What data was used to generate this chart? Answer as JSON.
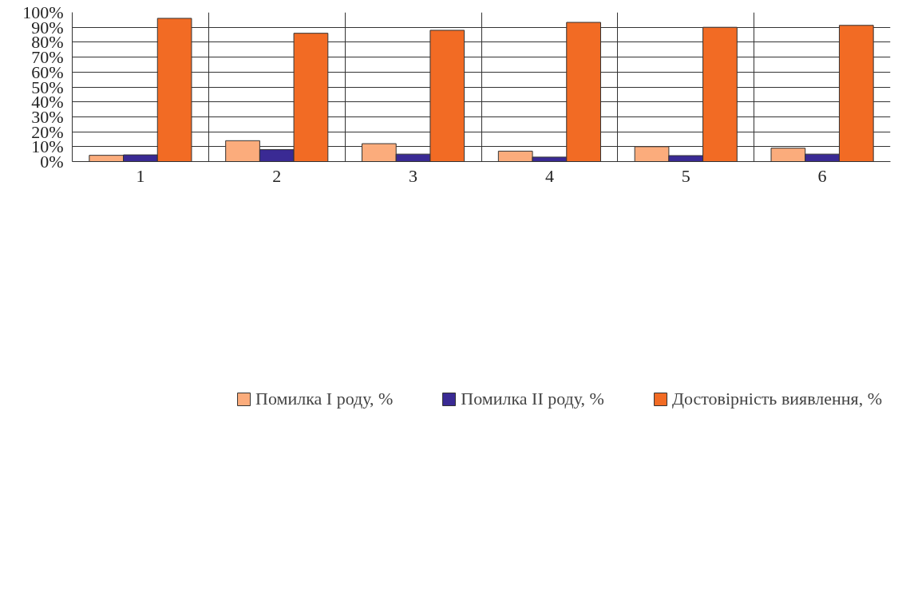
{
  "chart_data": {
    "type": "bar",
    "categories": [
      "1",
      "2",
      "3",
      "4",
      "5",
      "6"
    ],
    "series": [
      {
        "name": "Помилка I роду, %",
        "color": "#fbac7c",
        "values": [
          4.2,
          14,
          12,
          7,
          10,
          9
        ]
      },
      {
        "name": "Помилка II роду, %",
        "color": "#3a2a94",
        "values": [
          4.5,
          8,
          5,
          3,
          4,
          5
        ]
      },
      {
        "name": "Достовірність виявлення, %",
        "color": "#f26b24",
        "values": [
          96,
          86,
          88,
          93.3,
          90,
          91.3
        ]
      }
    ],
    "ylim": [
      0,
      100
    ],
    "yticks": [
      {
        "value": 0,
        "label": "0%"
      },
      {
        "value": 10,
        "label": "10%"
      },
      {
        "value": 20,
        "label": "20%"
      },
      {
        "value": 30,
        "label": "30%"
      },
      {
        "value": 40,
        "label": "40%"
      },
      {
        "value": 50,
        "label": "50%"
      },
      {
        "value": 60,
        "label": "60%"
      },
      {
        "value": 70,
        "label": "70%"
      },
      {
        "value": 80,
        "label": "80%"
      },
      {
        "value": 90,
        "label": "90%"
      },
      {
        "value": 100,
        "label": "100%"
      }
    ],
    "grid": true,
    "legend": "bottom"
  }
}
